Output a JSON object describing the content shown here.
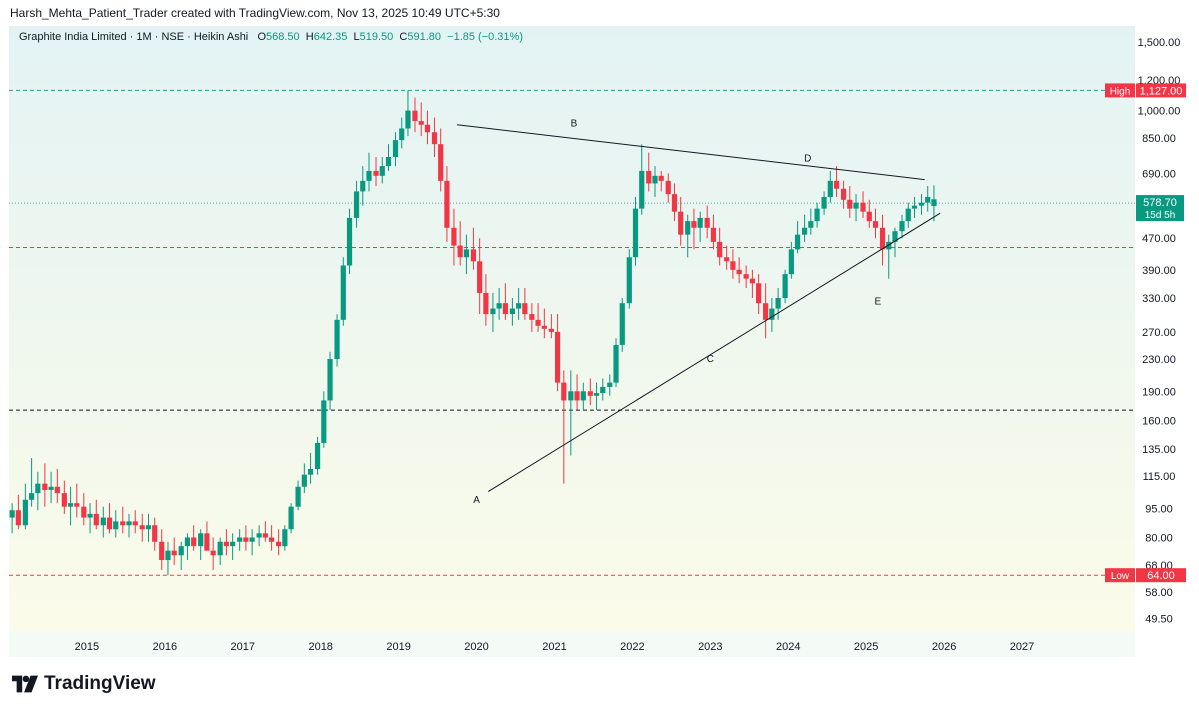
{
  "header": {
    "caption": "Harsh_Mehta_Patient_Trader created with TradingView.com, Nov 13, 2025 10:49 UTC+5:30"
  },
  "legend": {
    "symbol": "Graphite India Limited · 1M · NSE · Heikin Ashi",
    "open_label": "O",
    "open": "568.50",
    "high_label": "H",
    "high": "642.35",
    "low_label": "L",
    "low": "519.50",
    "close_label": "C",
    "close": "591.80",
    "change": "−1.85 (−0.31%)"
  },
  "footer": {
    "brand": "TradingView",
    "logo_icon": "tradingview-logo-icon"
  },
  "colors": {
    "up": "#089981",
    "down": "#f23645",
    "line": "#131722",
    "badge": "#f23645",
    "price_badge": "#089981"
  },
  "chart_data": {
    "type": "candlestick",
    "scale": "log",
    "price_axis_ticks": [
      "1,500.00",
      "1,200.00",
      "1,000.00",
      "850.00",
      "690.00",
      "570.00",
      "470.00",
      "390.00",
      "330.00",
      "270.00",
      "230.00",
      "190.00",
      "160.00",
      "135.00",
      "115.00",
      "95.00",
      "80.00",
      "68.00",
      "58.00",
      "49.50"
    ],
    "time_axis_ticks": [
      "2015",
      "2016",
      "2017",
      "2018",
      "2019",
      "2020",
      "2021",
      "2022",
      "2023",
      "2024",
      "2025",
      "2026",
      "2027"
    ],
    "ylim": [
      46,
      1650
    ],
    "xlim": [
      2014.0,
      2028.45
    ],
    "high_marker": {
      "label": "High",
      "value": "1,127.00",
      "price": 1127
    },
    "low_marker": {
      "label": "Low",
      "value": "64.00",
      "price": 64
    },
    "last_price": {
      "value": "578.70",
      "countdown": "15d 5h",
      "price": 578.7
    },
    "horizontal_levels": [
      {
        "price": 1127,
        "style": "dashed-teal"
      },
      {
        "price": 578.7,
        "style": "dotted-teal"
      },
      {
        "price": 445,
        "style": "dashed-red"
      },
      {
        "price": 170,
        "style": "dashed-black"
      },
      {
        "price": 64,
        "style": "dashed-red"
      }
    ],
    "trendlines": [
      {
        "from": {
          "t": 2019.75,
          "p": 920
        },
        "to": {
          "t": 2025.75,
          "p": 665
        }
      },
      {
        "from": {
          "t": 2020.15,
          "p": 105
        },
        "to": {
          "t": 2025.95,
          "p": 545
        }
      }
    ],
    "wave_labels": [
      {
        "text": "A",
        "t": 2020.0,
        "p": 98
      },
      {
        "text": "B",
        "t": 2021.25,
        "p": 910
      },
      {
        "text": "C",
        "t": 2023.0,
        "p": 226
      },
      {
        "text": "D",
        "t": 2024.25,
        "p": 740
      },
      {
        "text": "E",
        "t": 2025.15,
        "p": 318
      }
    ],
    "candles": [
      [
        2014.0,
        90,
        98,
        82,
        94
      ],
      [
        2014.08,
        94,
        103,
        84,
        86
      ],
      [
        2014.17,
        86,
        110,
        84,
        100
      ],
      [
        2014.25,
        100,
        128,
        96,
        104
      ],
      [
        2014.33,
        104,
        118,
        94,
        110
      ],
      [
        2014.42,
        110,
        124,
        96,
        106
      ],
      [
        2014.5,
        106,
        118,
        98,
        108
      ],
      [
        2014.58,
        108,
        120,
        98,
        104
      ],
      [
        2014.67,
        104,
        112,
        92,
        96
      ],
      [
        2014.75,
        96,
        108,
        86,
        98
      ],
      [
        2014.83,
        98,
        110,
        90,
        96
      ],
      [
        2014.92,
        96,
        104,
        86,
        90
      ],
      [
        2015.0,
        90,
        98,
        82,
        92
      ],
      [
        2015.08,
        92,
        100,
        84,
        86
      ],
      [
        2015.17,
        86,
        96,
        80,
        90
      ],
      [
        2015.25,
        90,
        98,
        82,
        84
      ],
      [
        2015.33,
        84,
        94,
        80,
        88
      ],
      [
        2015.42,
        88,
        96,
        82,
        86
      ],
      [
        2015.5,
        86,
        92,
        80,
        88
      ],
      [
        2015.58,
        88,
        94,
        82,
        86
      ],
      [
        2015.67,
        86,
        92,
        78,
        84
      ],
      [
        2015.75,
        84,
        92,
        78,
        86
      ],
      [
        2015.83,
        86,
        90,
        74,
        78
      ],
      [
        2015.92,
        78,
        84,
        66,
        70
      ],
      [
        2016.0,
        70,
        78,
        64,
        74
      ],
      [
        2016.08,
        74,
        80,
        68,
        72
      ],
      [
        2016.17,
        72,
        78,
        66,
        76
      ],
      [
        2016.25,
        76,
        82,
        70,
        80
      ],
      [
        2016.33,
        80,
        86,
        74,
        76
      ],
      [
        2016.42,
        76,
        84,
        70,
        82
      ],
      [
        2016.5,
        82,
        88,
        76,
        74
      ],
      [
        2016.58,
        74,
        80,
        66,
        72
      ],
      [
        2016.67,
        72,
        80,
        68,
        78
      ],
      [
        2016.75,
        78,
        84,
        72,
        76
      ],
      [
        2016.83,
        76,
        82,
        70,
        78
      ],
      [
        2016.92,
        78,
        84,
        74,
        80
      ],
      [
        2017.0,
        80,
        86,
        74,
        78
      ],
      [
        2017.08,
        78,
        84,
        72,
        80
      ],
      [
        2017.17,
        80,
        86,
        76,
        82
      ],
      [
        2017.25,
        82,
        88,
        78,
        80
      ],
      [
        2017.33,
        80,
        86,
        74,
        78
      ],
      [
        2017.42,
        78,
        84,
        72,
        76
      ],
      [
        2017.5,
        76,
        86,
        74,
        84
      ],
      [
        2017.58,
        84,
        98,
        82,
        96
      ],
      [
        2017.67,
        96,
        112,
        94,
        108
      ],
      [
        2017.75,
        108,
        124,
        104,
        116
      ],
      [
        2017.83,
        116,
        132,
        110,
        120
      ],
      [
        2017.92,
        120,
        145,
        116,
        140
      ],
      [
        2018.0,
        140,
        190,
        136,
        180
      ],
      [
        2018.08,
        180,
        240,
        170,
        230
      ],
      [
        2018.17,
        230,
        300,
        220,
        290
      ],
      [
        2018.25,
        290,
        420,
        280,
        400
      ],
      [
        2018.33,
        400,
        560,
        380,
        530
      ],
      [
        2018.42,
        530,
        660,
        500,
        620
      ],
      [
        2018.5,
        620,
        720,
        570,
        660
      ],
      [
        2018.58,
        660,
        780,
        620,
        700
      ],
      [
        2018.67,
        700,
        760,
        640,
        680
      ],
      [
        2018.75,
        680,
        760,
        650,
        720
      ],
      [
        2018.83,
        720,
        820,
        700,
        760
      ],
      [
        2018.92,
        760,
        880,
        720,
        840
      ],
      [
        2019.0,
        840,
        960,
        800,
        900
      ],
      [
        2019.08,
        900,
        1127,
        860,
        1000
      ],
      [
        2019.17,
        1000,
        1080,
        880,
        940
      ],
      [
        2019.25,
        940,
        1050,
        860,
        920
      ],
      [
        2019.33,
        920,
        1000,
        820,
        880
      ],
      [
        2019.42,
        880,
        960,
        760,
        820
      ],
      [
        2019.5,
        820,
        900,
        620,
        660
      ],
      [
        2019.58,
        660,
        720,
        460,
        500
      ],
      [
        2019.67,
        500,
        560,
        400,
        450
      ],
      [
        2019.75,
        450,
        520,
        400,
        420
      ],
      [
        2019.83,
        420,
        480,
        380,
        440
      ],
      [
        2019.92,
        440,
        500,
        390,
        410
      ],
      [
        2020.0,
        410,
        470,
        300,
        340
      ],
      [
        2020.08,
        340,
        380,
        280,
        300
      ],
      [
        2020.17,
        300,
        340,
        270,
        310
      ],
      [
        2020.25,
        310,
        350,
        290,
        320
      ],
      [
        2020.33,
        320,
        360,
        290,
        300
      ],
      [
        2020.42,
        300,
        330,
        280,
        310
      ],
      [
        2020.5,
        310,
        350,
        290,
        320
      ],
      [
        2020.58,
        320,
        350,
        290,
        300
      ],
      [
        2020.67,
        300,
        320,
        270,
        290
      ],
      [
        2020.75,
        290,
        320,
        270,
        280
      ],
      [
        2020.83,
        280,
        310,
        260,
        275
      ],
      [
        2020.92,
        275,
        300,
        260,
        270
      ],
      [
        2021.0,
        270,
        300,
        190,
        200
      ],
      [
        2021.08,
        200,
        215,
        110,
        180
      ],
      [
        2021.17,
        180,
        215,
        130,
        190
      ],
      [
        2021.25,
        190,
        210,
        170,
        180
      ],
      [
        2021.33,
        180,
        200,
        170,
        190
      ],
      [
        2021.42,
        190,
        205,
        175,
        185
      ],
      [
        2021.5,
        185,
        200,
        170,
        188
      ],
      [
        2021.58,
        188,
        205,
        180,
        195
      ],
      [
        2021.67,
        195,
        210,
        185,
        200
      ],
      [
        2021.75,
        200,
        260,
        195,
        250
      ],
      [
        2021.83,
        250,
        330,
        240,
        320
      ],
      [
        2021.92,
        320,
        440,
        310,
        420
      ],
      [
        2022.0,
        420,
        600,
        400,
        560
      ],
      [
        2022.08,
        560,
        820,
        540,
        700
      ],
      [
        2022.17,
        700,
        780,
        620,
        650
      ],
      [
        2022.25,
        650,
        720,
        600,
        680
      ],
      [
        2022.33,
        680,
        700,
        620,
        660
      ],
      [
        2022.42,
        660,
        690,
        580,
        610
      ],
      [
        2022.5,
        610,
        650,
        520,
        550
      ],
      [
        2022.58,
        550,
        600,
        450,
        480
      ],
      [
        2022.67,
        480,
        540,
        420,
        520
      ],
      [
        2022.75,
        520,
        560,
        440,
        500
      ],
      [
        2022.83,
        500,
        550,
        460,
        530
      ],
      [
        2022.92,
        530,
        570,
        470,
        500
      ],
      [
        2023.0,
        500,
        540,
        440,
        460
      ],
      [
        2023.08,
        460,
        500,
        400,
        420
      ],
      [
        2023.17,
        420,
        450,
        390,
        410
      ],
      [
        2023.25,
        410,
        440,
        370,
        390
      ],
      [
        2023.33,
        390,
        420,
        360,
        380
      ],
      [
        2023.42,
        380,
        400,
        350,
        370
      ],
      [
        2023.5,
        370,
        390,
        330,
        360
      ],
      [
        2023.58,
        360,
        380,
        300,
        320
      ],
      [
        2023.67,
        320,
        360,
        260,
        290
      ],
      [
        2023.75,
        290,
        330,
        270,
        310
      ],
      [
        2023.83,
        310,
        350,
        290,
        330
      ],
      [
        2023.92,
        330,
        390,
        320,
        380
      ],
      [
        2024.0,
        380,
        460,
        370,
        440
      ],
      [
        2024.08,
        440,
        520,
        430,
        480
      ],
      [
        2024.17,
        480,
        540,
        460,
        500
      ],
      [
        2024.25,
        500,
        560,
        480,
        520
      ],
      [
        2024.33,
        520,
        580,
        500,
        560
      ],
      [
        2024.42,
        560,
        620,
        540,
        600
      ],
      [
        2024.5,
        600,
        700,
        580,
        660
      ],
      [
        2024.58,
        660,
        720,
        600,
        630
      ],
      [
        2024.67,
        630,
        660,
        560,
        590
      ],
      [
        2024.75,
        590,
        640,
        530,
        560
      ],
      [
        2024.83,
        560,
        610,
        520,
        580
      ],
      [
        2024.92,
        580,
        620,
        530,
        550
      ],
      [
        2025.0,
        550,
        590,
        500,
        520
      ],
      [
        2025.08,
        520,
        560,
        470,
        500
      ],
      [
        2025.17,
        500,
        540,
        400,
        440
      ],
      [
        2025.25,
        440,
        480,
        370,
        460
      ],
      [
        2025.33,
        460,
        500,
        420,
        490
      ],
      [
        2025.42,
        490,
        540,
        470,
        520
      ],
      [
        2025.5,
        520,
        580,
        500,
        560
      ],
      [
        2025.58,
        560,
        600,
        530,
        570
      ],
      [
        2025.67,
        570,
        610,
        540,
        580
      ],
      [
        2025.75,
        580,
        640,
        550,
        600
      ],
      [
        2025.83,
        568.5,
        642.35,
        519.5,
        591.8
      ]
    ]
  }
}
